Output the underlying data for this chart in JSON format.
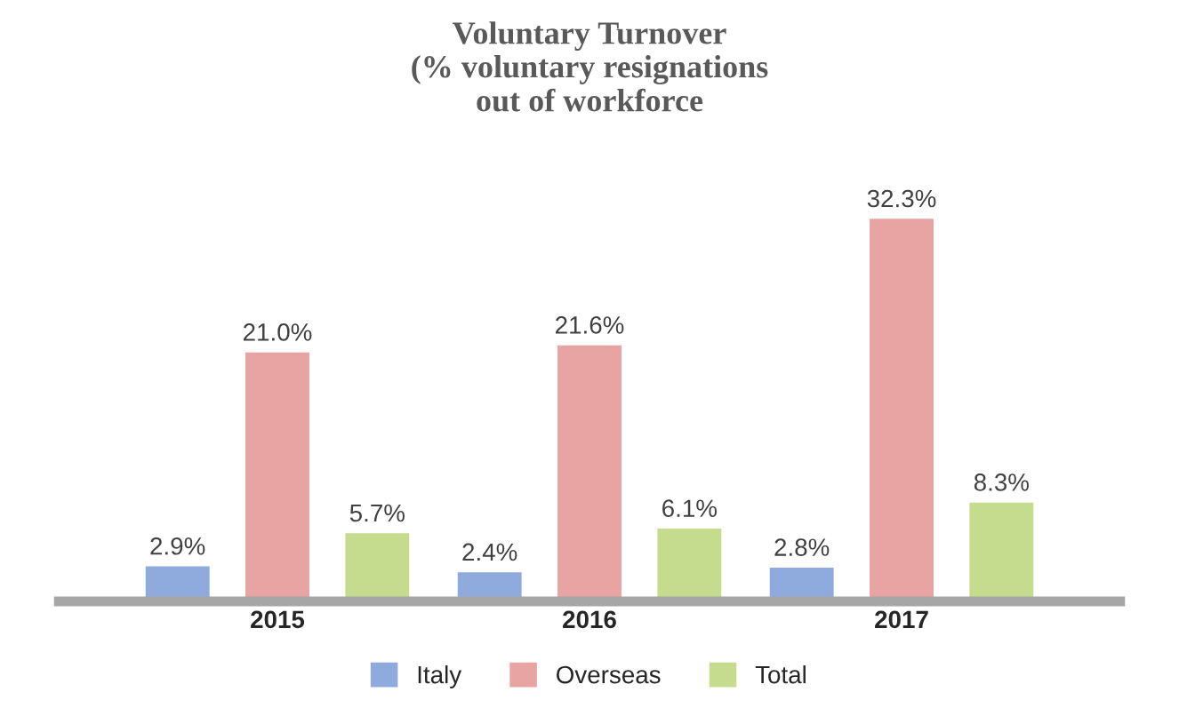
{
  "chart_data": {
    "type": "bar",
    "title": "Voluntary Turnover\n(% voluntary resignations\nout of workforce",
    "categories": [
      "2015",
      "2016",
      "2017"
    ],
    "series": [
      {
        "name": "Italy",
        "color": "#8faadc",
        "values": [
          2.9,
          2.4,
          2.8
        ],
        "value_labels": [
          "2.9%",
          "2.4%",
          "2.8%"
        ]
      },
      {
        "name": "Overseas",
        "color": "#e8a3a3",
        "values": [
          21.0,
          21.6,
          32.3
        ],
        "value_labels": [
          "21.0%",
          "21.6%",
          "32.3%"
        ]
      },
      {
        "name": "Total",
        "color": "#c5dc8e",
        "values": [
          5.7,
          6.1,
          8.3
        ],
        "value_labels": [
          "5.7%",
          "6.1%",
          "8.3%"
        ]
      }
    ],
    "legend": "bottom",
    "grid": false
  }
}
